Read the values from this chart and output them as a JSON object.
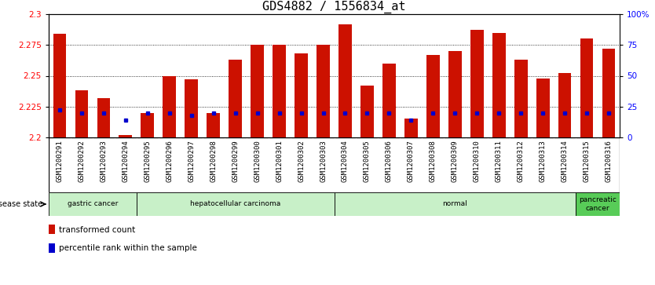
{
  "title": "GDS4882 / 1556834_at",
  "samples": [
    "GSM1200291",
    "GSM1200292",
    "GSM1200293",
    "GSM1200294",
    "GSM1200295",
    "GSM1200296",
    "GSM1200297",
    "GSM1200298",
    "GSM1200299",
    "GSM1200300",
    "GSM1200301",
    "GSM1200302",
    "GSM1200303",
    "GSM1200304",
    "GSM1200305",
    "GSM1200306",
    "GSM1200307",
    "GSM1200308",
    "GSM1200309",
    "GSM1200310",
    "GSM1200311",
    "GSM1200312",
    "GSM1200313",
    "GSM1200314",
    "GSM1200315",
    "GSM1200316"
  ],
  "transformed_count": [
    2.284,
    2.238,
    2.232,
    2.202,
    2.22,
    2.25,
    2.247,
    2.22,
    2.263,
    2.275,
    2.275,
    2.268,
    2.275,
    2.292,
    2.242,
    2.26,
    2.215,
    2.267,
    2.27,
    2.287,
    2.285,
    2.263,
    2.248,
    2.252,
    2.28,
    2.272
  ],
  "percentile_rank": [
    22,
    20,
    20,
    14,
    20,
    20,
    18,
    20,
    20,
    20,
    20,
    20,
    20,
    20,
    20,
    20,
    14,
    20,
    20,
    20,
    20,
    20,
    20,
    20,
    20,
    20
  ],
  "disease_bands": [
    {
      "label": "gastric cancer",
      "start": 0,
      "end": 4,
      "color": "#c8f0c8"
    },
    {
      "label": "hepatocellular carcinoma",
      "start": 4,
      "end": 13,
      "color": "#c8f0c8"
    },
    {
      "label": "normal",
      "start": 13,
      "end": 24,
      "color": "#c8f0c8"
    },
    {
      "label": "pancreatic\ncancer",
      "start": 24,
      "end": 26,
      "color": "#58cc58"
    }
  ],
  "ylim_left": [
    2.2,
    2.3
  ],
  "ylim_right": [
    0,
    100
  ],
  "yticks_left": [
    2.2,
    2.225,
    2.25,
    2.275,
    2.3
  ],
  "yticks_right": [
    0,
    25,
    50,
    75,
    100
  ],
  "bar_color": "#cc1100",
  "percentile_color": "#0000cc",
  "title_fontsize": 11,
  "tick_fontsize": 7.5,
  "xtick_fontsize": 6.5,
  "legend_fontsize": 7.5
}
